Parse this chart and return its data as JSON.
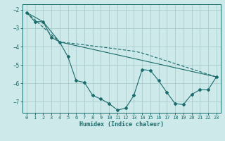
{
  "xlabel": "Humidex (Indice chaleur)",
  "xlim": [
    -0.5,
    23.5
  ],
  "ylim": [
    -7.6,
    -1.7
  ],
  "yticks": [
    -7,
    -6,
    -5,
    -4,
    -3,
    -2
  ],
  "xticks": [
    0,
    1,
    2,
    3,
    4,
    5,
    6,
    7,
    8,
    9,
    10,
    11,
    12,
    13,
    14,
    15,
    16,
    17,
    18,
    19,
    20,
    21,
    22,
    23
  ],
  "bg_color": "#cee9e9",
  "grid_color": "#aacccc",
  "line_color": "#1a6b6b",
  "line1_x": [
    0,
    1,
    2,
    3,
    4,
    5,
    6,
    7,
    8,
    9,
    10,
    11,
    12,
    13,
    14,
    15,
    16,
    17,
    18,
    19,
    20,
    21,
    22,
    23
  ],
  "line1_y": [
    -2.15,
    -2.65,
    -2.65,
    -3.5,
    -3.75,
    -4.55,
    -5.85,
    -5.95,
    -6.65,
    -6.85,
    -7.1,
    -7.45,
    -7.35,
    -6.65,
    -5.25,
    -5.3,
    -5.85,
    -6.5,
    -7.1,
    -7.15,
    -6.6,
    -6.35,
    -6.35,
    -5.65
  ],
  "line2_x": [
    0,
    4,
    6,
    13,
    14,
    23
  ],
  "line2_y": [
    -2.15,
    -3.75,
    -3.85,
    -4.25,
    -4.35,
    -5.65
  ],
  "line3_x": [
    0,
    2,
    4,
    23
  ],
  "line3_y": [
    -2.15,
    -2.65,
    -3.75,
    -5.65
  ]
}
